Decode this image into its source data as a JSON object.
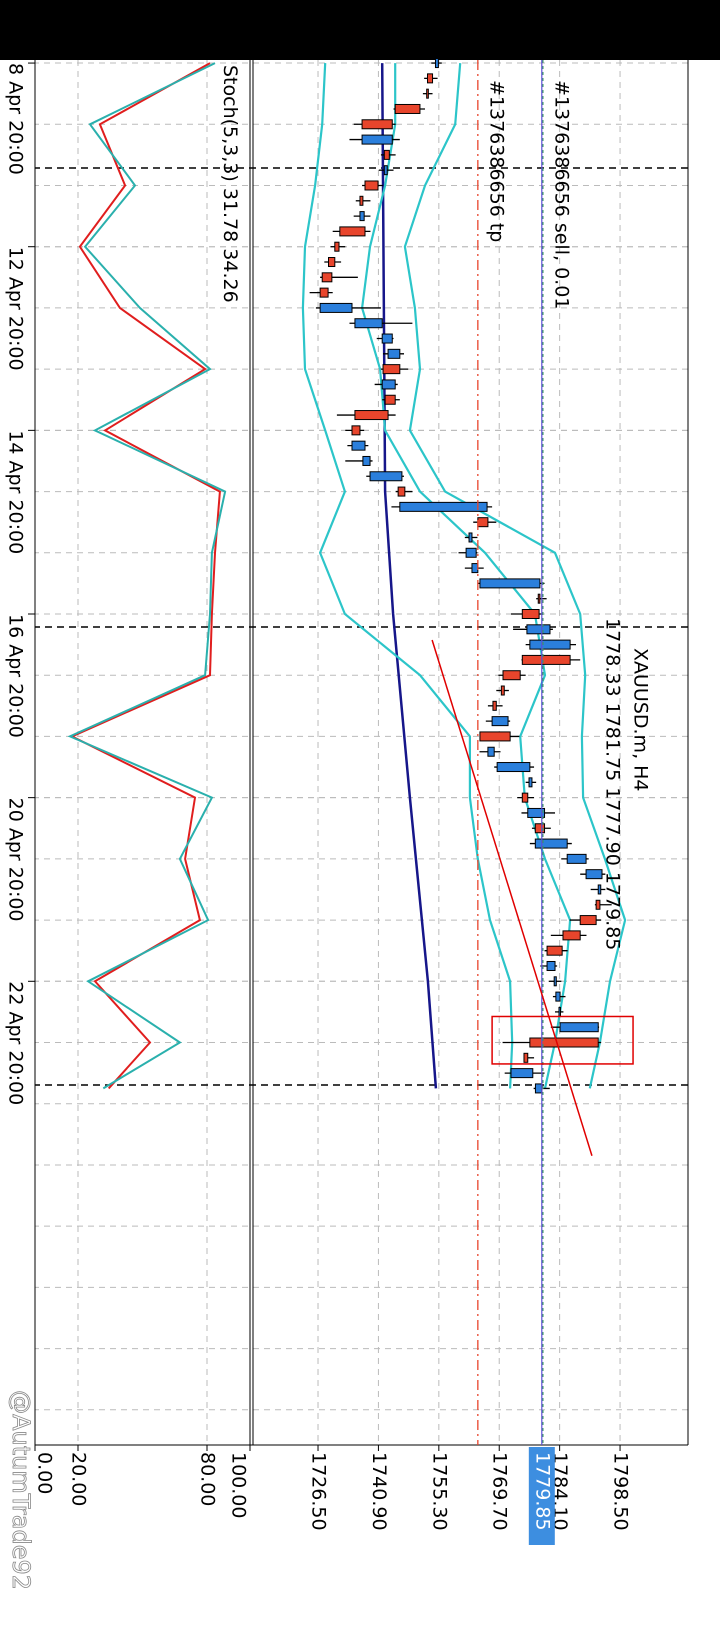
{
  "chart_data": {
    "type": "candlestick",
    "title": "XAUUSD.m, H4",
    "header": "1778.33 1781.75 1777.90 1779.85",
    "candles": {
      "open": [
        1754.5,
        1753.8,
        1752.8,
        1750.8,
        1744.2,
        1737.0,
        1743.5,
        1742.3,
        1740.8,
        1737.2,
        1736.5,
        1737.7,
        1731.5,
        1730.5,
        1729.8,
        1728.9,
        1727.0,
        1735.3,
        1741.8,
        1743.2,
        1746.0,
        1741.8,
        1744.9,
        1743.2,
        1736.5,
        1734.6,
        1737.2,
        1738.9,
        1747.2,
        1746.0,
        1767.0,
        1762.5,
        1761.8,
        1763.2,
        1765.1,
        1779.4,
        1779.2,
        1776.3,
        1777.0,
        1786.6,
        1774.7,
        1770.9,
        1769.0,
        1768.0,
        1772.3,
        1767.0,
        1769.2,
        1776.8,
        1776.5,
        1776.5,
        1780.5,
        1778.3,
        1785.9,
        1790.4,
        1793.3,
        1793.7,
        1792.8,
        1789.0,
        1784.7,
        1781.1,
        1782.8,
        1783.2,
        1784.0,
        1784.2,
        1793.3,
        1776.5,
        1772.5,
        1778.33
      ],
      "high": [
        1756,
        1755,
        1753.8,
        1752,
        1745,
        1746,
        1745,
        1744.5,
        1742,
        1739,
        1739,
        1739,
        1733,
        1732,
        1736,
        1730,
        1741.5,
        1749,
        1744.5,
        1747,
        1748,
        1745.5,
        1746,
        1745,
        1737.5,
        1738.5,
        1739.5,
        1747,
        1749,
        1768,
        1769,
        1764.5,
        1764.5,
        1766,
        1780.5,
        1781,
        1780,
        1782.5,
        1788,
        1789,
        1776,
        1772,
        1770.5,
        1772.3,
        1774.5,
        1770,
        1778,
        1778.5,
        1778,
        1783,
        1782,
        1787,
        1791,
        1795,
        1795,
        1796.5,
        1794,
        1790.5,
        1786,
        1783.5,
        1784.5,
        1785.5,
        1785,
        1793.5,
        1794,
        1778,
        1780.5,
        1781.75
      ],
      "low": [
        1753.5,
        1751.8,
        1751.5,
        1744.5,
        1735,
        1734,
        1741.5,
        1741,
        1737,
        1735.5,
        1735,
        1730,
        1729.5,
        1728,
        1727,
        1724.5,
        1726,
        1734,
        1740.5,
        1742,
        1741.5,
        1740,
        1741.8,
        1731,
        1733,
        1733.5,
        1733,
        1738,
        1745,
        1744,
        1763.5,
        1761.5,
        1760,
        1761.5,
        1764.5,
        1778.5,
        1772.5,
        1773,
        1776,
        1775,
        1769.5,
        1769,
        1767,
        1766.5,
        1765,
        1765,
        1768.5,
        1776,
        1774,
        1775,
        1777.5,
        1777,
        1784.5,
        1789,
        1791.5,
        1792.5,
        1786.5,
        1782,
        1780.5,
        1779.5,
        1781.5,
        1782.5,
        1783,
        1782,
        1770.5,
        1775.5,
        1771,
        1777.9
      ],
      "close": [
        1755.2,
        1752.6,
        1752.4,
        1744.9,
        1737.0,
        1744.2,
        1742.3,
        1743.0,
        1737.7,
        1736.5,
        1737.5,
        1731.7,
        1730.5,
        1729.0,
        1727.5,
        1727.0,
        1734.6,
        1741.8,
        1744.2,
        1746.0,
        1742.0,
        1744.9,
        1742.5,
        1735.3,
        1734.6,
        1737.7,
        1738.9,
        1746.5,
        1745.6,
        1766.8,
        1764.6,
        1763.2,
        1764.2,
        1764.6,
        1779.4,
        1779.0,
        1775.2,
        1781.8,
        1786.6,
        1775.2,
        1770.6,
        1770.2,
        1768.2,
        1771.8,
        1765.1,
        1768.5,
        1777.0,
        1777.5,
        1775.2,
        1780.5,
        1778.3,
        1785.9,
        1790.4,
        1794.2,
        1793.9,
        1792.8,
        1789.0,
        1784.9,
        1781.1,
        1783.0,
        1783.3,
        1784.2,
        1784.3,
        1793.3,
        1777.0,
        1775.6,
        1777.7,
        1779.85
      ]
    },
    "up_color": "#2b7fdc",
    "down_color": "#e8452c",
    "bands": {
      "color": "#2cc5c9",
      "x": [
        0,
        4,
        8,
        12,
        16,
        20,
        24,
        28,
        32,
        36,
        40,
        44,
        48,
        52,
        56,
        60,
        64,
        67
      ],
      "upper": [
        1760.4,
        1759.2,
        1752.0,
        1747.2,
        1749.6,
        1750.8,
        1748.4,
        1756.8,
        1783.0,
        1789.0,
        1790.2,
        1789.4,
        1789.7,
        1794.9,
        1799.7,
        1796.1,
        1793.7,
        1791.3
      ],
      "middle": [
        1744.9,
        1744.9,
        1742.5,
        1738.9,
        1737.0,
        1741.3,
        1742.5,
        1750.8,
        1766.3,
        1778.2,
        1780.6,
        1774.7,
        1775.8,
        1780.6,
        1786.6,
        1785.4,
        1783.0,
        1780.6
      ],
      "lower": [
        1728.2,
        1727.5,
        1725.8,
        1723.4,
        1722.9,
        1723.4,
        1728.2,
        1732.9,
        1727.0,
        1732.9,
        1750.8,
        1762.7,
        1762.7,
        1764.6,
        1767.5,
        1772.3,
        1772.8,
        1772.3
      ]
    },
    "ma": {
      "color": "#16168a",
      "x": [
        0,
        28,
        36,
        48,
        60,
        67
      ],
      "values": [
        1741.8,
        1742.5,
        1744.4,
        1748.4,
        1752.7,
        1754.6
      ]
    },
    "orders": [
      {
        "label": "#1376386656 sell, 0.01",
        "price": 1780.1,
        "color": "#3a9a5b"
      },
      {
        "label": "#1376386656 tp",
        "price": 1764.6,
        "color": "#e8452c"
      }
    ],
    "price_line_color": "#5b4fd6",
    "trendline": {
      "x": [
        37.7,
        71.4
      ],
      "values": [
        1753.7,
        1791.8
      ],
      "color": "#e00000"
    },
    "rectangle": {
      "x": [
        62.3,
        65.4
      ],
      "values": [
        1768.0,
        1801.6
      ],
      "color": "#e00000"
    },
    "xlim": [
      -0.2,
      90.3
    ],
    "xticks": [
      {
        "value": 0,
        "label": "8 Apr 20:00"
      },
      {
        "value": 12,
        "label": "12 Apr 20:00"
      },
      {
        "value": 24,
        "label": "14 Apr 20:00"
      },
      {
        "value": 36,
        "label": "16 Apr 20:00"
      },
      {
        "value": 48,
        "label": "20 Apr 20:00"
      },
      {
        "value": 60,
        "label": "22 Apr 20:00"
      }
    ],
    "ylim": [
      1711,
      1814.7
    ],
    "yticks": [
      {
        "value": 1726.5,
        "label": "1726.50"
      },
      {
        "value": 1740.9,
        "label": "1740.90"
      },
      {
        "value": 1755.3,
        "label": "1755.30"
      },
      {
        "value": 1769.7,
        "label": "1769.70"
      },
      {
        "value": 1784.1,
        "label": "1784.10"
      },
      {
        "value": 1798.5,
        "label": "1798.50"
      }
    ],
    "grid": true,
    "stoch": {
      "label": "Stoch(5,3,3)",
      "x": [
        0,
        4,
        8,
        12,
        16,
        20,
        24,
        28,
        32,
        36,
        40,
        44,
        48,
        52,
        56,
        60,
        64,
        67
      ],
      "main": {
        "color": "#2ab0ad",
        "values": [
          83.7,
          25.6,
          46.5,
          23.3,
          48.8,
          81.4,
          27.9,
          88.4,
          82.3,
          81.4,
          79.1,
          16.3,
          82.3,
          67.4,
          80.5,
          24.7,
          67.4,
          31.78
        ]
      },
      "signal": {
        "color": "#e01e1e",
        "values": [
          81.4,
          30.2,
          41.9,
          20.9,
          39.5,
          79.1,
          32.6,
          86.0,
          83.7,
          82.3,
          81.4,
          17.2,
          74.4,
          69.8,
          76.7,
          27.9,
          53.5,
          34.26
        ]
      },
      "ylim": [
        0,
        100
      ],
      "yticks": [
        {
          "value": 0,
          "label": "0.00"
        },
        {
          "value": 20,
          "label": "20.00"
        },
        {
          "value": 80,
          "label": "80.00"
        },
        {
          "value": 100,
          "label": "100.00"
        }
      ]
    },
    "watermark": "@AutumTrade92"
  }
}
